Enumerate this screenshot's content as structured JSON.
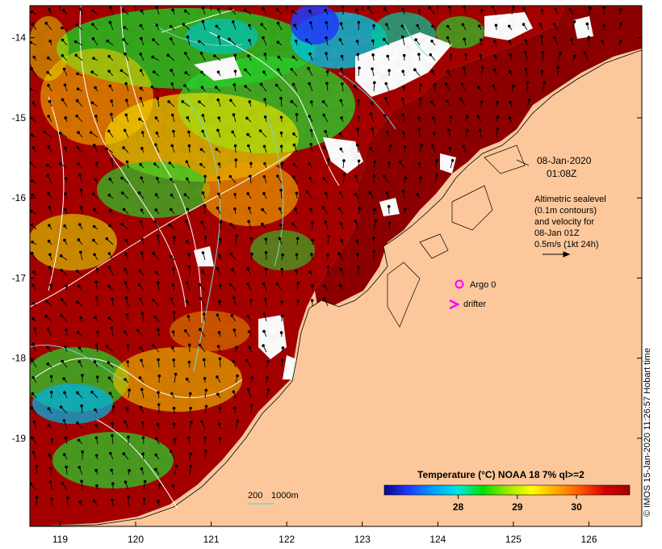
{
  "map": {
    "lon_ticks": [
      "119",
      "120",
      "121",
      "122",
      "123",
      "124",
      "125",
      "126"
    ],
    "lat_ticks": [
      "-14",
      "-15",
      "-16",
      "-17",
      "-18",
      "-19"
    ],
    "lon_range": [
      118.6,
      126.7
    ],
    "lat_range": [
      -20.1,
      -13.6
    ],
    "land_color": "#fcc89b",
    "cloud_color": "#ffffff",
    "contour_color": "#ffffff",
    "bathy_color": "#6fd8d8"
  },
  "annotations": {
    "date": "08-Jan-2020",
    "time": "01:08Z",
    "legend_line1": "Altimetric sealevel",
    "legend_line2": "(0.1m contours)",
    "legend_line3": "and velocity for",
    "legend_line4": "08-Jan 01Z",
    "legend_line5": "0.5m/s (1kt 24h)",
    "argo_label": "Argo 0",
    "drifter_label": "drifter",
    "argo_color": "#ff00ff",
    "drifter_color": "#ff00ff"
  },
  "bathymetry_legend": {
    "label_200": "200",
    "label_1000": "1000m"
  },
  "colorbar": {
    "title": "Temperature (°C) NOAA 18 7% ql>=2",
    "ticks": [
      "28",
      "29",
      "30"
    ],
    "colors": [
      "#08088a",
      "#1e3cff",
      "#00a0ff",
      "#00e6e6",
      "#00e000",
      "#9be600",
      "#ffff00",
      "#ffaa00",
      "#ff5500",
      "#d40000",
      "#a00000"
    ]
  },
  "credit": "© IMOS 15-Jan-2020 11:26:57 Hobart time"
}
